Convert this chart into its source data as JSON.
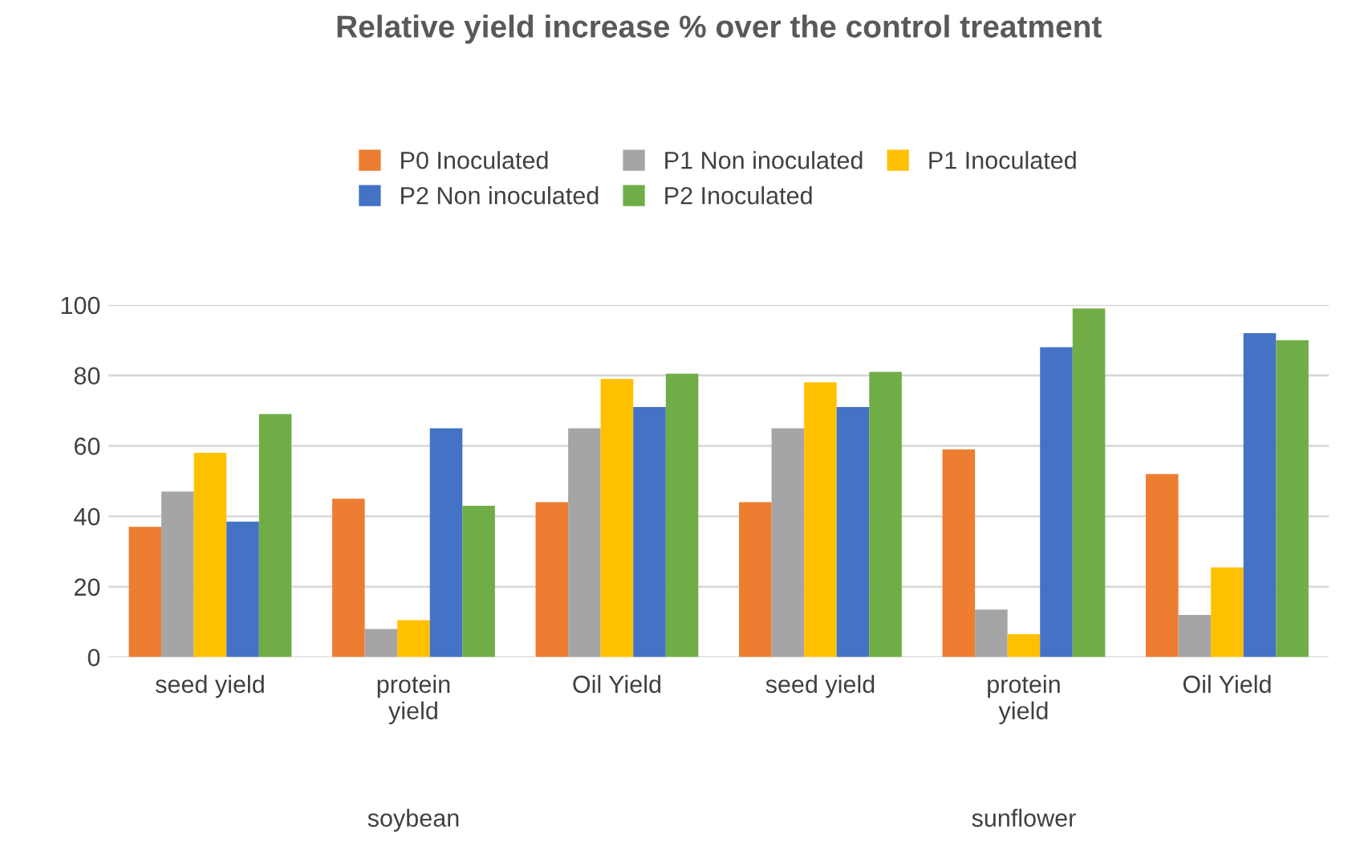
{
  "chart_data": {
    "type": "bar",
    "title": "Relative yield increase % over the control treatment",
    "categories": [
      "seed yield",
      "protein\nyield",
      "Oil Yield",
      "seed yield",
      "protein\nyield",
      "Oil Yield"
    ],
    "series": [
      {
        "name": "P0 Inoculated",
        "color": "#ed7d31",
        "values": [
          37,
          45,
          44,
          44,
          59,
          52
        ]
      },
      {
        "name": "P1 Non inoculated",
        "color": "#a5a5a5",
        "values": [
          47,
          8,
          65,
          65,
          13.5,
          12
        ]
      },
      {
        "name": "P1 Inoculated",
        "color": "#ffc000",
        "values": [
          58,
          10.5,
          79,
          78,
          6.5,
          25.5
        ]
      },
      {
        "name": "P2 Non inoculated",
        "color": "#4472c4",
        "values": [
          38.5,
          65,
          71,
          71,
          88,
          92
        ]
      },
      {
        "name": "P2 Inoculated",
        "color": "#70ad47",
        "values": [
          69,
          43,
          80.5,
          81,
          99,
          90
        ]
      }
    ],
    "annotations": [
      "soybean",
      "sunflower"
    ],
    "ylim": [
      0,
      100
    ],
    "yticks": [
      0,
      20,
      40,
      60,
      80,
      100
    ],
    "grid": "y",
    "legend": "top"
  }
}
